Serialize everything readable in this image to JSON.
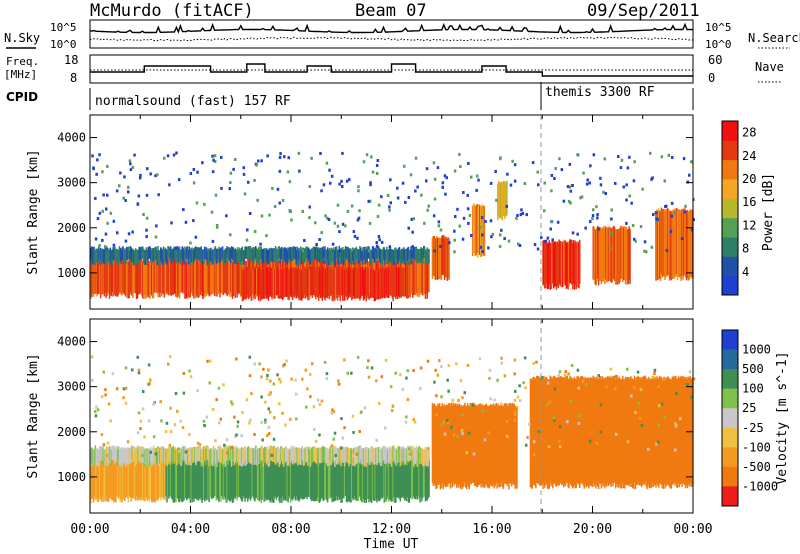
{
  "header": {
    "station": "McMurdo (fitACF)",
    "beam": "Beam 07",
    "date": "09/Sep/2011"
  },
  "top_panels": {
    "left_label_nsky": "N.Sky",
    "right_label_nsearch": "N.Search",
    "noise_ticks": [
      "10^5",
      "10^0"
    ],
    "freq_label_1": "Freq.",
    "freq_label_2": "[MHz]",
    "freq_ticks": [
      "18",
      "8"
    ],
    "nave_ticks": [
      "60",
      "0"
    ],
    "right_label_nave": "Nave",
    "cpid_label": "CPID",
    "cpid_1": "normalsound (fast) 157 RF",
    "cpid_2": "themis 3300 RF"
  },
  "colors": {
    "power_scale": [
      "#1f3fd0",
      "#2050a8",
      "#2e7f6a",
      "#55a055",
      "#b7b82a",
      "#f5a623",
      "#f07a10",
      "#e33a14",
      "#f01010"
    ],
    "velocity_scale": [
      "#1f3fd0",
      "#256a9e",
      "#3f8f55",
      "#7fc24a",
      "#c8c8c8",
      "#f2c040",
      "#f59a20",
      "#f07a10",
      "#ee1c1c"
    ],
    "background": "#ffffff"
  },
  "chart_data": [
    {
      "type": "heatmap",
      "title": "",
      "xlabel": "Time UT",
      "ylabel": "Slant Range [km]",
      "xlim": [
        "00:00",
        "24:00"
      ],
      "ylim": [
        200,
        4500
      ],
      "x_ticks": [
        "00:00",
        "04:00",
        "08:00",
        "12:00",
        "16:00",
        "20:00",
        "00:00"
      ],
      "y_ticks": [
        1000,
        2000,
        3000,
        4000
      ],
      "colorbar_label": "Power [dB]",
      "colorbar_ticks": [
        4,
        8,
        12,
        16,
        20,
        24,
        28
      ],
      "colorbar_range": [
        0,
        30
      ],
      "echo_regions": [
        {
          "t0": 0.0,
          "t1": 13.5,
          "r0": 500,
          "r1": 1300,
          "level": 27
        },
        {
          "t0": 0.0,
          "t1": 13.5,
          "r0": 1250,
          "r1": 1550,
          "level": 10
        },
        {
          "t0": 6.0,
          "t1": 12.5,
          "r0": 450,
          "r1": 1100,
          "level": 29
        },
        {
          "t0": 13.6,
          "t1": 14.3,
          "r0": 900,
          "r1": 1800,
          "level": 27
        },
        {
          "t0": 15.2,
          "t1": 15.7,
          "r0": 1400,
          "r1": 2500,
          "level": 24
        },
        {
          "t0": 16.2,
          "t1": 16.6,
          "r0": 2200,
          "r1": 3000,
          "level": 20
        },
        {
          "t0": 18.0,
          "t1": 19.5,
          "r0": 700,
          "r1": 1700,
          "level": 28
        },
        {
          "t0": 20.0,
          "t1": 21.5,
          "r0": 800,
          "r1": 2000,
          "level": 26
        },
        {
          "t0": 22.5,
          "t1": 24.0,
          "r0": 900,
          "r1": 2400,
          "level": 25
        }
      ]
    },
    {
      "type": "heatmap",
      "title": "",
      "xlabel": "Time UT",
      "ylabel": "Slant Range [km]",
      "xlim": [
        "00:00",
        "24:00"
      ],
      "ylim": [
        200,
        4500
      ],
      "x_ticks": [
        "00:00",
        "04:00",
        "08:00",
        "12:00",
        "16:00",
        "20:00",
        "00:00"
      ],
      "y_ticks": [
        1000,
        2000,
        3000,
        4000
      ],
      "colorbar_label": "Velocity [m s^-1]",
      "colorbar_ticks": [
        1000,
        500,
        100,
        25,
        -25,
        -100,
        -500,
        -1000
      ],
      "echo_regions": [
        {
          "t0": 0.0,
          "t1": 3.0,
          "r0": 500,
          "r1": 1400,
          "velocity": -100
        },
        {
          "t0": 3.0,
          "t1": 13.5,
          "r0": 500,
          "r1": 1400,
          "velocity": 100
        },
        {
          "t0": 0.0,
          "t1": 13.5,
          "r0": 1300,
          "r1": 1650,
          "velocity": 0
        },
        {
          "t0": 13.6,
          "t1": 17.0,
          "r0": 800,
          "r1": 2600,
          "velocity": -500
        },
        {
          "t0": 17.5,
          "t1": 24.0,
          "r0": 800,
          "r1": 3200,
          "velocity": -500
        }
      ]
    }
  ]
}
